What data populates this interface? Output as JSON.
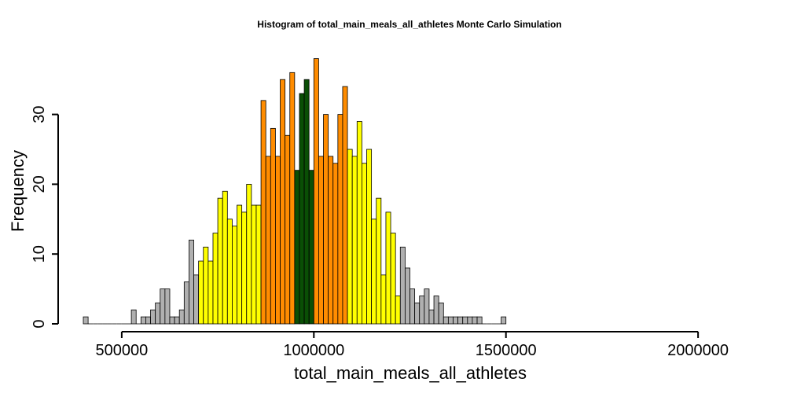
{
  "chart_data": {
    "type": "bar",
    "subtype": "histogram",
    "title": "Histogram of  total_main_meals_all_athletes  Monte Carlo Simulation",
    "xlabel": "total_main_meals_all_athletes",
    "ylabel": "Frequency",
    "x_start": 400000,
    "bin_width": 12500,
    "values": [
      1,
      0,
      0,
      0,
      0,
      0,
      0,
      0,
      0,
      0,
      2,
      0,
      1,
      1,
      2,
      3,
      5,
      5,
      1,
      1,
      2,
      6,
      12,
      7,
      9,
      11,
      9,
      13,
      18,
      19,
      15,
      14,
      17,
      16,
      20,
      17,
      17,
      32,
      24,
      28,
      24,
      35,
      27,
      36,
      22,
      33,
      35,
      22,
      38,
      24,
      30,
      24,
      23,
      30,
      34,
      25,
      24,
      29,
      23,
      25,
      15,
      18,
      7,
      16,
      13,
      4,
      11,
      8,
      5,
      3,
      4,
      5,
      2,
      4,
      3,
      1,
      1,
      1,
      1,
      1,
      1,
      1,
      1,
      0,
      0,
      0,
      0,
      1
    ],
    "bin_colors": [
      "#b0b0b0",
      "#b0b0b0",
      "#b0b0b0",
      "#b0b0b0",
      "#b0b0b0",
      "#b0b0b0",
      "#b0b0b0",
      "#b0b0b0",
      "#b0b0b0",
      "#b0b0b0",
      "#b0b0b0",
      "#b0b0b0",
      "#b0b0b0",
      "#b0b0b0",
      "#b0b0b0",
      "#b0b0b0",
      "#b0b0b0",
      "#b0b0b0",
      "#b0b0b0",
      "#b0b0b0",
      "#b0b0b0",
      "#b0b0b0",
      "#b0b0b0",
      "#b0b0b0",
      "#ffff00",
      "#ffff00",
      "#ffff00",
      "#ffff00",
      "#ffff00",
      "#ffff00",
      "#ffff00",
      "#ffff00",
      "#ffff00",
      "#ffff00",
      "#ffff00",
      "#ffff00",
      "#ffff00",
      "#ff8c00",
      "#ff8c00",
      "#ff8c00",
      "#ff8c00",
      "#ff8c00",
      "#ff8c00",
      "#ff8c00",
      "#0a4f05",
      "#0a4f05",
      "#0a4f05",
      "#0a4f05",
      "#ff8c00",
      "#ff8c00",
      "#ff8c00",
      "#ff8c00",
      "#ff8c00",
      "#ff8c00",
      "#ff8c00",
      "#ffff00",
      "#ffff00",
      "#ffff00",
      "#ffff00",
      "#ffff00",
      "#ffff00",
      "#ffff00",
      "#ffff00",
      "#ffff00",
      "#ffff00",
      "#ffff00",
      "#b0b0b0",
      "#b0b0b0",
      "#b0b0b0",
      "#b0b0b0",
      "#b0b0b0",
      "#b0b0b0",
      "#b0b0b0",
      "#b0b0b0",
      "#b0b0b0",
      "#b0b0b0",
      "#b0b0b0",
      "#b0b0b0",
      "#b0b0b0",
      "#b0b0b0",
      "#b0b0b0",
      "#b0b0b0",
      "#b0b0b0",
      "#b0b0b0",
      "#b0b0b0",
      "#b0b0b0",
      "#b0b0b0",
      "#b0b0b0"
    ],
    "xlim": [
      400000,
      2100000
    ],
    "ylim": [
      0,
      38
    ],
    "x_ticks": [
      500000,
      1000000,
      1500000,
      2000000
    ],
    "x_tick_labels": [
      "500000",
      "1000000",
      "1500000",
      "2000000"
    ],
    "y_ticks": [
      0,
      10,
      20,
      30
    ],
    "y_tick_labels": [
      "0",
      "10",
      "20",
      "30"
    ],
    "grid": false,
    "legend": "none"
  }
}
